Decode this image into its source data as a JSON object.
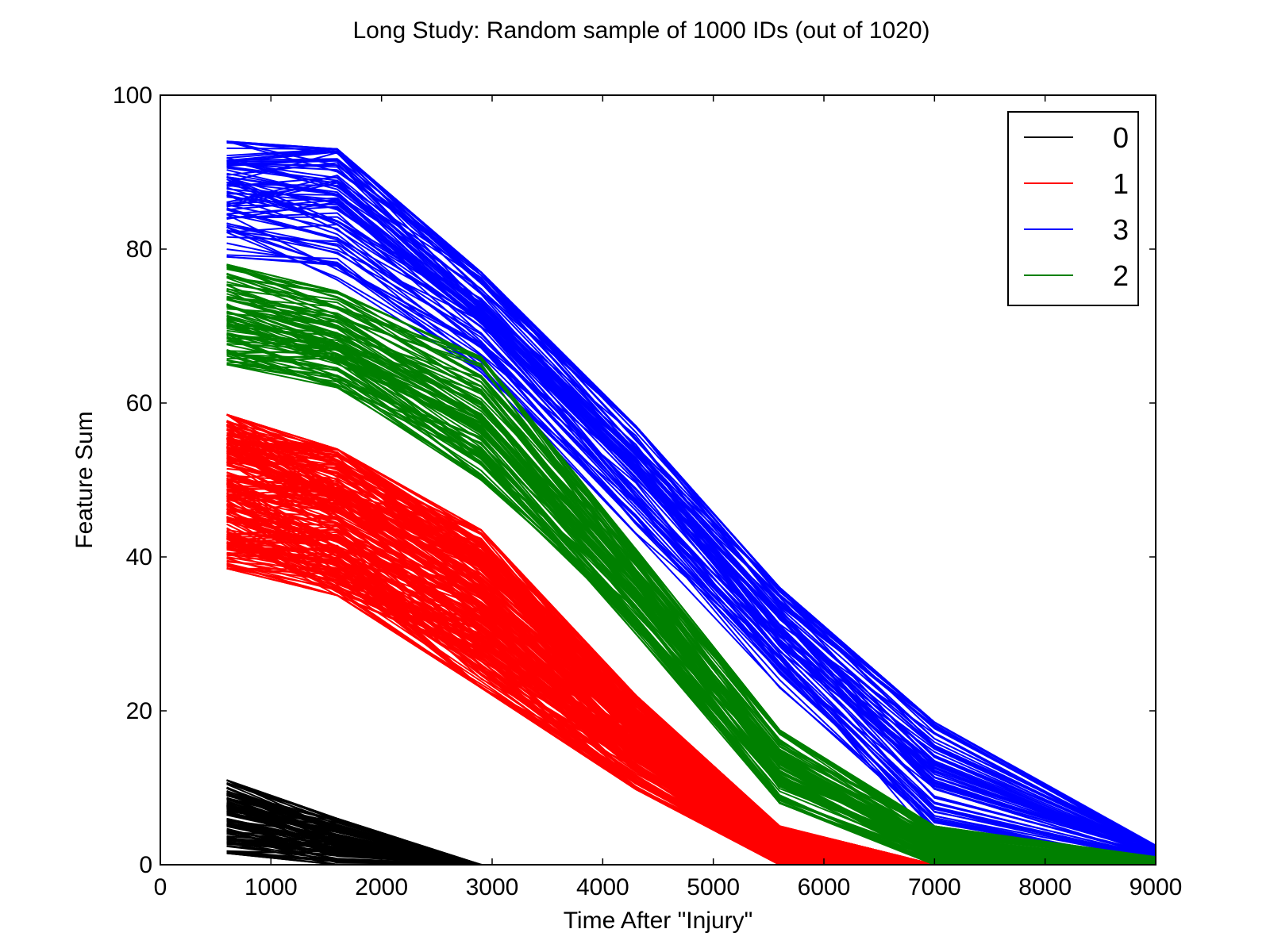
{
  "chart_data": {
    "type": "line",
    "title": "Long Study: Random sample of 1000 IDs (out of 1020)",
    "xlabel": "Time After \"Injury\"",
    "ylabel": "Feature Sum",
    "xlim": [
      0,
      9000
    ],
    "ylim": [
      0,
      100
    ],
    "xticks": [
      0,
      1000,
      2000,
      3000,
      4000,
      5000,
      6000,
      7000,
      8000,
      9000
    ],
    "yticks": [
      0,
      20,
      40,
      60,
      80,
      100
    ],
    "grid": false,
    "legend_position": "top-right",
    "legend": [
      {
        "label": "0",
        "color": "#000000"
      },
      {
        "label": "1",
        "color": "#ff0000"
      },
      {
        "label": "3",
        "color": "#0000ff"
      },
      {
        "label": "2",
        "color": "#008000"
      }
    ],
    "series": [
      {
        "group": "0",
        "color": "#000000",
        "x": [
          600,
          1600,
          2900
        ],
        "y_low": [
          1.5,
          0,
          0
        ],
        "y_high": [
          11,
          6,
          0
        ],
        "lines": 110
      },
      {
        "group": "1",
        "color": "#ff0000",
        "x": [
          600,
          1600,
          2900,
          4300,
          5600,
          7000
        ],
        "y_low": [
          38.5,
          35,
          23,
          9.8,
          0,
          0
        ],
        "y_high": [
          58.5,
          54,
          43.5,
          22,
          5,
          0
        ],
        "lines": 250
      },
      {
        "group": "3",
        "color": "#0000ff",
        "x": [
          600,
          1600,
          2900,
          4300,
          5600,
          7000,
          9000
        ],
        "y_low": [
          79,
          76,
          64,
          43,
          23,
          3,
          0
        ],
        "y_high": [
          94,
          93,
          77,
          57,
          36,
          18.5,
          2.5
        ],
        "lines": 80
      },
      {
        "group": "2",
        "color": "#008000",
        "x": [
          600,
          1600,
          2900,
          4300,
          5600,
          7000,
          9000
        ],
        "y_low": [
          65,
          62,
          50,
          30,
          8,
          0,
          0
        ],
        "y_high": [
          78,
          74.5,
          66,
          41,
          17.5,
          5,
          1
        ],
        "lines": 100
      }
    ]
  }
}
